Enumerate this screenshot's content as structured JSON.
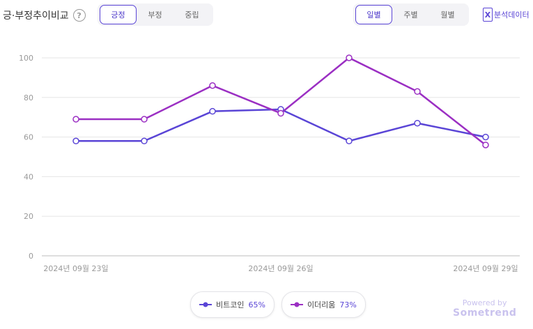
{
  "header": {
    "title": "긍·부정추이비교",
    "help_label": "?",
    "sentiment_tabs": [
      "긍정",
      "부정",
      "중립"
    ],
    "period_tabs": [
      "일별",
      "주별",
      "월별"
    ],
    "export_label": "분석데이터",
    "export_icon": "X"
  },
  "chart_data": {
    "type": "line",
    "x": [
      "2024-09-23",
      "2024-09-24",
      "2024-09-25",
      "2024-09-26",
      "2024-09-27",
      "2024-09-28",
      "2024-09-29"
    ],
    "xtick_labels": [
      {
        "index": 0,
        "label": "2024년 09월 23일"
      },
      {
        "index": 3,
        "label": "2024년 09월 26일"
      },
      {
        "index": 6,
        "label": "2024년 09월 29일"
      }
    ],
    "ylim": [
      0,
      100
    ],
    "yticks": [
      0,
      20,
      40,
      60,
      80,
      100
    ],
    "grid": true,
    "series": [
      {
        "name": "비트코인",
        "share": "65%",
        "color": "#5a45d6",
        "values": [
          58,
          58,
          73,
          74,
          58,
          67,
          60
        ]
      },
      {
        "name": "이더리움",
        "share": "73%",
        "color": "#9b2fc3",
        "values": [
          69,
          69,
          86,
          72,
          100,
          83,
          56
        ]
      }
    ],
    "legend_position": "bottom"
  },
  "branding": {
    "powered_by": "Powered by",
    "name": "Sometrend"
  }
}
